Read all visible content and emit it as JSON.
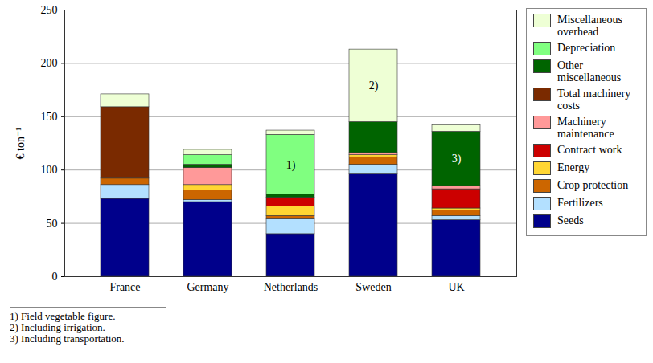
{
  "chart_data": {
    "type": "bar",
    "stacked": true,
    "grid": true,
    "legend": "right",
    "y_label": "€ ton⁻¹",
    "categories": [
      "France",
      "Germany",
      "Netherlands",
      "Sweden",
      "UK"
    ],
    "ylim": [
      0,
      250
    ],
    "yticks": [
      0,
      50,
      100,
      150,
      200,
      250
    ],
    "series": [
      {
        "name": "Seeds",
        "color": "#00008b",
        "values": [
          73,
          70,
          40,
          96,
          53
        ]
      },
      {
        "name": "Fertilizers",
        "color": "#b3e0ff",
        "values": [
          13,
          2,
          14,
          9,
          4
        ]
      },
      {
        "name": "Crop protection",
        "color": "#cc6600",
        "values": [
          6,
          9,
          3,
          7,
          5
        ]
      },
      {
        "name": "Energy",
        "color": "#ffd633",
        "values": [
          0,
          5,
          9,
          2,
          2
        ]
      },
      {
        "name": "Contract work",
        "color": "#cc0000",
        "values": [
          0,
          0,
          8,
          0,
          18
        ]
      },
      {
        "name": "Machinery maintenance",
        "color": "#ff9999",
        "values": [
          0,
          16,
          0,
          2,
          3
        ]
      },
      {
        "name": "Total machinery costs",
        "color": "#7a2a00",
        "values": [
          67,
          0,
          0,
          0,
          0
        ]
      },
      {
        "name": "Other miscellaneous",
        "color": "#006400",
        "values": [
          0,
          3,
          3,
          29,
          51
        ]
      },
      {
        "name": "Depreciation",
        "color": "#80ff80",
        "values": [
          0,
          9,
          56,
          0,
          0
        ]
      },
      {
        "name": "Miscellaneous overhead",
        "color": "#eeffd5",
        "values": [
          12,
          5,
          4,
          68,
          6
        ]
      }
    ],
    "annotations": [
      {
        "category": "Netherlands",
        "series": "Depreciation",
        "label": "1)"
      },
      {
        "category": "Sweden",
        "series": "Miscellaneous overhead",
        "label": "2)"
      },
      {
        "category": "UK",
        "series": "Other miscellaneous",
        "label": "3)"
      }
    ],
    "notes": [
      "1) Field vegetable figure.",
      "2) Including irrigation.",
      "3) Including transportation."
    ]
  }
}
